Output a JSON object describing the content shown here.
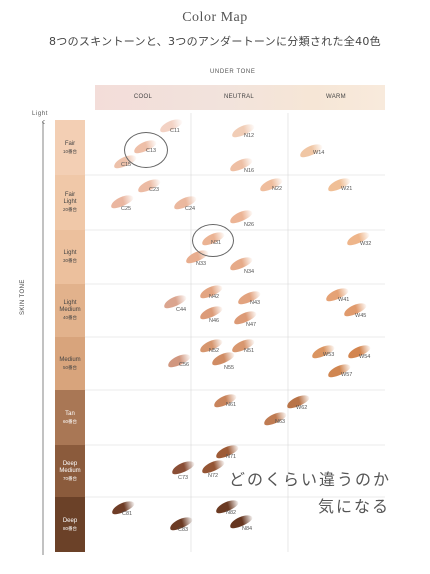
{
  "title": "Color Map",
  "subtitle": "8つのスキントーンと、3つのアンダートーンに分類された全40色",
  "under_tone_label": "UNDER TONE",
  "under_tones": [
    "COOL",
    "NEUTRAL",
    "WARM"
  ],
  "skin_tone_label": "SKIN TONE",
  "light_label": "Light",
  "skin_tones": [
    {
      "name": "Fair",
      "sub": "10番台",
      "color": "#f3cfb4",
      "text": "#444444"
    },
    {
      "name": "Fair\nLight",
      "sub": "20番台",
      "color": "#f0c8a8",
      "text": "#444444"
    },
    {
      "name": "Light",
      "sub": "30番台",
      "color": "#ecc09d",
      "text": "#444444"
    },
    {
      "name": "Light\nMedium",
      "sub": "40番台",
      "color": "#e2b28c",
      "text": "#444444"
    },
    {
      "name": "Medium",
      "sub": "50番台",
      "color": "#d8a47c",
      "text": "#444444"
    },
    {
      "name": "Tan",
      "sub": "60番台",
      "color": "#a97755",
      "text": "#ffffff"
    },
    {
      "name": "Deep\nMedium",
      "sub": "70番台",
      "color": "#8b5b3c",
      "text": "#ffffff"
    },
    {
      "name": "Deep",
      "sub": "80番台",
      "color": "#6b4128",
      "text": "#ffffff"
    }
  ],
  "swatches": [
    {
      "code": "C11",
      "color": "#f3d2c4"
    },
    {
      "code": "C13",
      "color": "#eebfa8"
    },
    {
      "code": "C15",
      "color": "#edc1aa"
    },
    {
      "code": "N12",
      "color": "#f1cdb6"
    },
    {
      "code": "N16",
      "color": "#eebfa4"
    },
    {
      "code": "W14",
      "color": "#f0c6a4"
    },
    {
      "code": "C23",
      "color": "#ecbba4"
    },
    {
      "code": "C25",
      "color": "#eab6a0"
    },
    {
      "code": "C24",
      "color": "#ebb89e"
    },
    {
      "code": "N22",
      "color": "#efbd9d"
    },
    {
      "code": "N26",
      "color": "#ecb495"
    },
    {
      "code": "W21",
      "color": "#f0bf96"
    },
    {
      "code": "N31",
      "color": "#ebb393"
    },
    {
      "code": "N33",
      "color": "#e8ad8e"
    },
    {
      "code": "N34",
      "color": "#e6aa88"
    },
    {
      "code": "W32",
      "color": "#eeb58a"
    },
    {
      "code": "C44",
      "color": "#dba58f"
    },
    {
      "code": "N42",
      "color": "#e3a582"
    },
    {
      "code": "N43",
      "color": "#e2a37f"
    },
    {
      "code": "N46",
      "color": "#dc9b78"
    },
    {
      "code": "N47",
      "color": "#dc9a76"
    },
    {
      "code": "W41",
      "color": "#e5a275"
    },
    {
      "code": "W45",
      "color": "#e09a6c"
    },
    {
      "code": "C56",
      "color": "#d1977f"
    },
    {
      "code": "N52",
      "color": "#d6966e"
    },
    {
      "code": "N51",
      "color": "#d8976f"
    },
    {
      "code": "N55",
      "color": "#d08c64"
    },
    {
      "code": "W53",
      "color": "#da9460"
    },
    {
      "code": "W54",
      "color": "#d3854f"
    },
    {
      "code": "W57",
      "color": "#d08651"
    },
    {
      "code": "N61",
      "color": "#c8845c"
    },
    {
      "code": "W62",
      "color": "#b87347"
    },
    {
      "code": "N63",
      "color": "#bf7b52"
    },
    {
      "code": "N71",
      "color": "#9e5b36"
    },
    {
      "code": "C73",
      "color": "#8a4e36"
    },
    {
      "code": "N72",
      "color": "#945534"
    },
    {
      "code": "C81",
      "color": "#6f3d27"
    },
    {
      "code": "C83",
      "color": "#6c3b24"
    },
    {
      "code": "N82",
      "color": "#6b3a22"
    },
    {
      "code": "N84",
      "color": "#663620"
    }
  ],
  "handwritten": [
    "どのくらい違うのか",
    "気になる"
  ]
}
